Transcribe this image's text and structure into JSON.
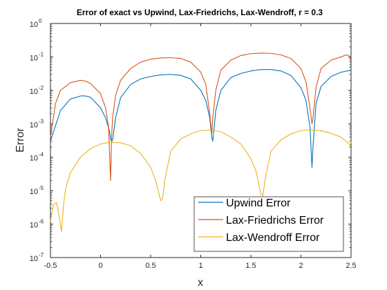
{
  "chart_data": {
    "type": "line",
    "title": "Error of exact vs Upwind, Lax-Friedrichs, Lax-Wendroff, r = 0.3",
    "xlabel": "x",
    "ylabel": "Error",
    "xlim": [
      -0.5,
      2.5
    ],
    "ylim": [
      1e-07,
      1
    ],
    "yscale": "log",
    "grid": false,
    "legend_position": "bottom-right",
    "x_ticks": [
      -0.5,
      0,
      0.5,
      1,
      1.5,
      2,
      2.5
    ],
    "x_tick_labels": [
      "-0.5",
      "0",
      "0.5",
      "1",
      "1.5",
      "2",
      "2.5"
    ],
    "y_ticks": [
      {
        "value": 1e-07,
        "exp": "-7"
      },
      {
        "value": 1e-06,
        "exp": "-6"
      },
      {
        "value": 1e-05,
        "exp": "-5"
      },
      {
        "value": 0.0001,
        "exp": "-4"
      },
      {
        "value": 0.001,
        "exp": "-3"
      },
      {
        "value": 0.01,
        "exp": "-2"
      },
      {
        "value": 0.1,
        "exp": "-1"
      },
      {
        "value": 1,
        "exp": "0"
      }
    ],
    "y_tick_base": "10",
    "series": [
      {
        "name": "Upwind Error",
        "color": "#0072BD",
        "x": [
          -0.5,
          -0.4,
          -0.3,
          -0.2,
          -0.15,
          -0.1,
          0.0,
          0.05,
          0.09,
          0.1,
          0.11,
          0.12,
          0.15,
          0.2,
          0.3,
          0.4,
          0.5,
          0.6,
          0.7,
          0.8,
          0.9,
          1.0,
          1.05,
          1.09,
          1.11,
          1.12,
          1.15,
          1.2,
          1.3,
          1.4,
          1.5,
          1.6,
          1.7,
          1.8,
          1.9,
          2.0,
          2.05,
          2.09,
          2.11,
          2.12,
          2.15,
          2.2,
          2.3,
          2.4,
          2.5
        ],
        "y": [
          0.0003,
          0.0025,
          0.0055,
          0.0068,
          0.0068,
          0.0062,
          0.003,
          0.0015,
          0.0006,
          0.00035,
          0.0003,
          0.00032,
          0.0015,
          0.006,
          0.015,
          0.022,
          0.026,
          0.029,
          0.03,
          0.028,
          0.022,
          0.01,
          0.005,
          0.0015,
          0.0004,
          0.0003,
          0.0025,
          0.01,
          0.024,
          0.032,
          0.038,
          0.042,
          0.042,
          0.038,
          0.028,
          0.012,
          0.005,
          0.0008,
          5e-05,
          0.0002,
          0.004,
          0.013,
          0.026,
          0.035,
          0.04
        ]
      },
      {
        "name": "Lax-Friedrichs Error",
        "color": "#D95319",
        "x": [
          -0.5,
          -0.45,
          -0.4,
          -0.3,
          -0.2,
          -0.15,
          -0.1,
          0.0,
          0.05,
          0.08,
          0.1,
          0.11,
          0.12,
          0.15,
          0.2,
          0.3,
          0.4,
          0.5,
          0.6,
          0.7,
          0.8,
          0.9,
          1.0,
          1.05,
          1.09,
          1.11,
          1.12,
          1.15,
          1.2,
          1.3,
          1.4,
          1.5,
          1.6,
          1.7,
          1.8,
          1.9,
          2.0,
          2.05,
          2.09,
          2.11,
          2.12,
          2.15,
          2.2,
          2.3,
          2.4,
          2.45,
          2.48,
          2.5
        ],
        "y": [
          0.0004,
          0.004,
          0.01,
          0.017,
          0.02,
          0.019,
          0.016,
          0.008,
          0.003,
          0.0008,
          2e-05,
          0.0004,
          0.0015,
          0.007,
          0.02,
          0.045,
          0.07,
          0.085,
          0.093,
          0.095,
          0.09,
          0.07,
          0.035,
          0.015,
          0.002,
          0.0005,
          0.0015,
          0.01,
          0.04,
          0.08,
          0.11,
          0.125,
          0.13,
          0.128,
          0.115,
          0.09,
          0.045,
          0.018,
          0.003,
          0.001,
          0.0015,
          0.012,
          0.045,
          0.08,
          0.1,
          0.115,
          0.11,
          0.08
        ]
      },
      {
        "name": "Lax-Wendroff Error",
        "color": "#EDB120",
        "x": [
          -0.5,
          -0.47,
          -0.44,
          -0.41,
          -0.39,
          -0.37,
          -0.35,
          -0.3,
          -0.2,
          -0.1,
          0.0,
          0.1,
          0.2,
          0.3,
          0.4,
          0.5,
          0.55,
          0.6,
          0.62,
          0.64,
          0.7,
          0.8,
          0.9,
          1.0,
          1.1,
          1.2,
          1.3,
          1.4,
          1.5,
          1.55,
          1.6,
          1.62,
          1.64,
          1.7,
          1.8,
          1.9,
          2.0,
          2.1,
          2.2,
          2.3,
          2.4,
          2.48,
          2.49,
          2.5
        ],
        "y": [
          1.2e-06,
          3.8e-06,
          4.5e-06,
          1.5e-06,
          6e-07,
          3.5e-06,
          1.1e-05,
          3.5e-05,
          0.0001,
          0.00018,
          0.00025,
          0.00028,
          0.00027,
          0.00022,
          0.00013,
          5e-05,
          2e-05,
          5e-06,
          6e-06,
          2e-05,
          0.00015,
          0.00035,
          0.0005,
          0.00063,
          0.00065,
          0.00058,
          0.0004,
          0.00025,
          9e-05,
          4e-05,
          8e-06,
          7e-06,
          2e-05,
          0.00015,
          0.00033,
          0.0005,
          0.00063,
          0.00066,
          0.00062,
          0.00052,
          0.0004,
          0.00025,
          0.00022,
          0.0003
        ]
      }
    ]
  }
}
